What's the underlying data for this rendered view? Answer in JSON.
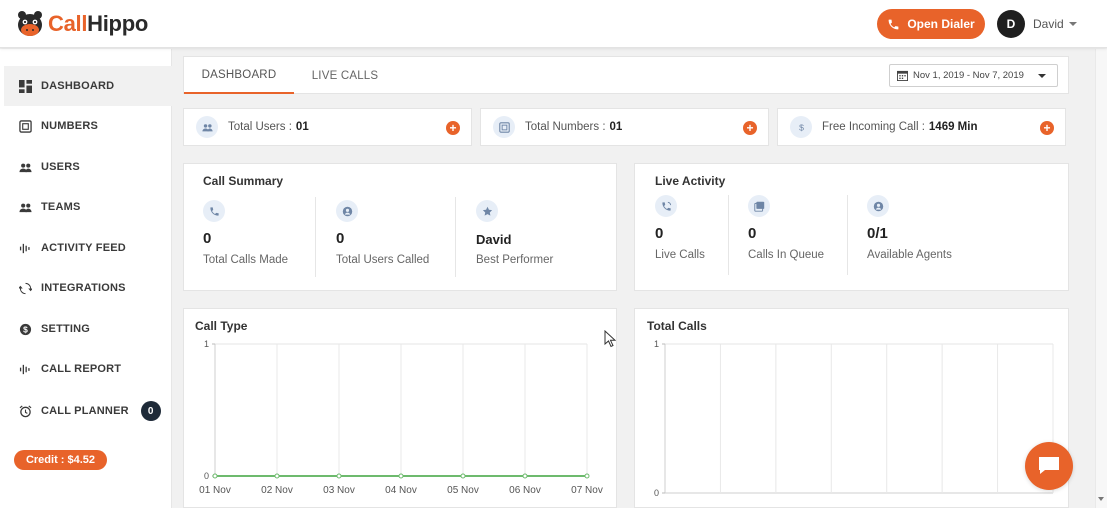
{
  "header": {
    "logo_part1": "Call",
    "logo_part2": "Hippo",
    "open_dialer_label": "Open Dialer",
    "avatar_initial": "D",
    "username": "David"
  },
  "sidebar": {
    "items": [
      {
        "label": "DASHBOARD",
        "icon": "dashboard-icon",
        "active": true
      },
      {
        "label": "NUMBERS",
        "icon": "numbers-icon"
      },
      {
        "label": "USERS",
        "icon": "users-icon"
      },
      {
        "label": "TEAMS",
        "icon": "teams-icon"
      },
      {
        "label": "ACTIVITY FEED",
        "icon": "activity-icon"
      },
      {
        "label": "INTEGRATIONS",
        "icon": "integrations-icon"
      },
      {
        "label": "SETTING",
        "icon": "setting-icon"
      },
      {
        "label": "CALL REPORT",
        "icon": "report-icon"
      },
      {
        "label": "CALL PLANNER",
        "icon": "alarm-clock-icon",
        "badge": "0"
      }
    ],
    "credit_label": "Credit : $4.52"
  },
  "tabs": [
    {
      "label": "DASHBOARD",
      "active": true
    },
    {
      "label": "LIVE CALLS",
      "active": false
    }
  ],
  "date_range": "Nov 1, 2019 - Nov 7, 2019",
  "stats": [
    {
      "label": "Total Users :",
      "value": "01",
      "icon": "users-icon"
    },
    {
      "label": "Total Numbers :",
      "value": "01",
      "icon": "numbers-icon"
    },
    {
      "label": "Free Incoming Call :",
      "value": "1469 Min",
      "icon": "dollar-icon"
    }
  ],
  "call_summary": {
    "title": "Call Summary",
    "metrics": [
      {
        "value": "0",
        "label": "Total Calls Made",
        "icon": "phone-icon"
      },
      {
        "value": "0",
        "label": "Total Users Called",
        "icon": "user-circle-icon"
      },
      {
        "value": "David",
        "label": "Best Performer",
        "icon": "star-icon"
      }
    ]
  },
  "live_activity": {
    "title": "Live Activity",
    "metrics": [
      {
        "value": "0",
        "label": "Live Calls",
        "icon": "phone-ringing-icon"
      },
      {
        "value": "0",
        "label": "Calls In Queue",
        "icon": "queue-icon"
      },
      {
        "value": "0/1",
        "label": "Available Agents",
        "icon": "user-circle-icon"
      }
    ]
  },
  "chart_data": [
    {
      "type": "line",
      "title": "Call Type",
      "categories": [
        "01 Nov",
        "02 Nov",
        "03 Nov",
        "04 Nov",
        "05 Nov",
        "06 Nov",
        "07 Nov"
      ],
      "series": [
        {
          "values": [
            0,
            0,
            0,
            0,
            0,
            0,
            0
          ],
          "color": "#6dba6d"
        }
      ],
      "ylim": [
        0,
        1
      ],
      "y_ticks": [
        "0",
        "1"
      ],
      "grid": true
    },
    {
      "type": "line",
      "title": "Total Calls",
      "categories": [],
      "series": [],
      "ylim": [
        0,
        1
      ],
      "y_ticks": [
        "0",
        "1"
      ],
      "grid": true
    }
  ],
  "colors": {
    "accent": "#e8632a",
    "dark": "#1e2a38",
    "line": "#6dba6d"
  }
}
